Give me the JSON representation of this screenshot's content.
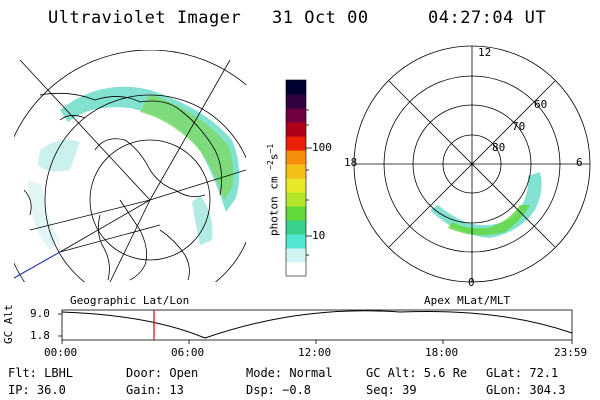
{
  "header": {
    "instrument": "Ultraviolet Imager",
    "date": "31 Oct 00",
    "time": "04:27:04 UT"
  },
  "colorbar": {
    "unit": "photon cm",
    "unit_exp": "−2",
    "unit_s": "s",
    "unit_s_exp": "−1",
    "tick_high": "100",
    "tick_low": "10",
    "colors": [
      "#ffffff",
      "#d0f4f4",
      "#50e6d0",
      "#38d08c",
      "#62d83a",
      "#b4e62a",
      "#e8e82a",
      "#f4c018",
      "#f48c0c",
      "#e82008",
      "#b00018",
      "#700040",
      "#300040",
      "#000030"
    ]
  },
  "polar": {
    "mlt_top": "12",
    "mlt_bottom": "0",
    "mlt_left": "18",
    "mlt_right": "6",
    "lat_60": "60",
    "lat_70": "70",
    "lat_80": "80"
  },
  "map_labels": {
    "left": "Geographic Lat/Lon",
    "right": "Apex  MLat/MLT"
  },
  "altitude_plot": {
    "axis_label": "GC Alt",
    "y_high": "9.0",
    "y_low": "1.8",
    "x_ticks": [
      "00:00",
      "06:00",
      "12:00",
      "18:00",
      "23:59"
    ],
    "marker_color": "#e00000"
  },
  "info": {
    "flt": "Flt: LBHL",
    "door": "Door: Open",
    "mode": "Mode: Normal",
    "gc_alt": "GC Alt: 5.6 Re",
    "glat": "GLat:  72.1",
    "ip": "IP: 36.0",
    "gain": "Gain: 13",
    "dsp": "Dsp:   −0.8",
    "seq": "Seq: 39",
    "glon": "GLon: 304.3"
  }
}
